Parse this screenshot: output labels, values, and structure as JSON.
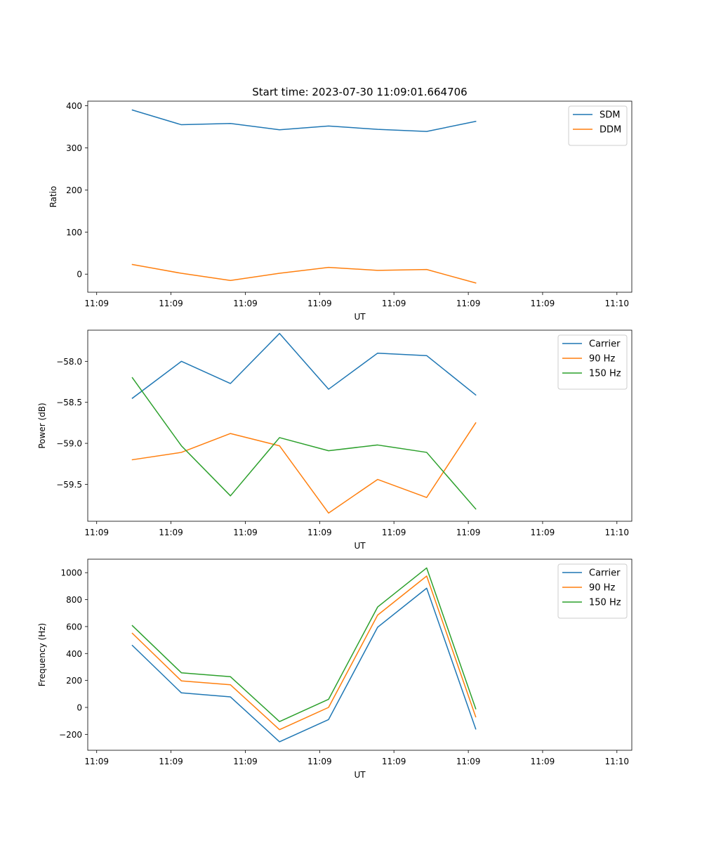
{
  "figure_title": "Start time: 2023-07-30 11:09:01.664706",
  "colors": {
    "c0": "#1f77b4",
    "c1": "#ff7f0e",
    "c2": "#2ca02c",
    "axis": "#000000",
    "legend_border": "#cccccc"
  },
  "chart_data": [
    {
      "type": "line",
      "title": "Start time: 2023-07-30 11:09:01.664706",
      "xlabel": "UT",
      "ylabel": "Ratio",
      "x_ticks": [
        "11:09",
        "11:09",
        "11:09",
        "11:09",
        "11:09",
        "11:09",
        "11:09",
        "11:10"
      ],
      "x_tick_positions": [
        0,
        8.33,
        16.67,
        25,
        33.33,
        41.67,
        50,
        58.33
      ],
      "xlim": [
        -1,
        60
      ],
      "ylim": [
        -43,
        411
      ],
      "y_ticks": [
        0,
        100,
        200,
        300,
        400
      ],
      "legend_location": "upper right",
      "x": [
        4,
        9.5,
        15,
        20.5,
        26,
        31.5,
        37,
        42.5
      ],
      "series": [
        {
          "name": "SDM",
          "color": "#1f77b4",
          "values": [
            390,
            355,
            358,
            343,
            352,
            344,
            339,
            363
          ]
        },
        {
          "name": "DDM",
          "color": "#ff7f0e",
          "values": [
            23,
            2,
            -15,
            2,
            16,
            9,
            11,
            -21
          ]
        }
      ]
    },
    {
      "type": "line",
      "title": "",
      "xlabel": "UT",
      "ylabel": "Power (dB)",
      "x_ticks": [
        "11:09",
        "11:09",
        "11:09",
        "11:09",
        "11:09",
        "11:09",
        "11:09",
        "11:10"
      ],
      "x_tick_positions": [
        0,
        8.33,
        16.67,
        25,
        33.33,
        41.67,
        50,
        58.33
      ],
      "xlim": [
        -1,
        60
      ],
      "ylim": [
        -59.95,
        -57.62
      ],
      "y_ticks": [
        -58.0,
        -58.5,
        -59.0,
        -59.5
      ],
      "y_tick_labels": [
        "−58.0",
        "−58.5",
        "−59.0",
        "−59.5"
      ],
      "legend_location": "upper right",
      "x": [
        4,
        9.5,
        15,
        20.5,
        26,
        31.5,
        37,
        42.5
      ],
      "series": [
        {
          "name": "Carrier",
          "color": "#1f77b4",
          "values": [
            -58.45,
            -58.0,
            -58.27,
            -57.66,
            -58.34,
            -57.9,
            -57.93,
            -58.41
          ]
        },
        {
          "name": "90 Hz",
          "color": "#ff7f0e",
          "values": [
            -59.2,
            -59.11,
            -58.88,
            -59.03,
            -59.85,
            -59.44,
            -59.66,
            -58.75
          ]
        },
        {
          "name": "150 Hz",
          "color": "#2ca02c",
          "values": [
            -58.2,
            -59.03,
            -59.64,
            -58.93,
            -59.09,
            -59.02,
            -59.11,
            -59.8
          ]
        }
      ]
    },
    {
      "type": "line",
      "title": "",
      "xlabel": "UT",
      "ylabel": "Frequency (Hz)",
      "x_ticks": [
        "11:09",
        "11:09",
        "11:09",
        "11:09",
        "11:09",
        "11:09",
        "11:09",
        "11:10"
      ],
      "x_tick_positions": [
        0,
        8.33,
        16.67,
        25,
        33.33,
        41.67,
        50,
        58.33
      ],
      "xlim": [
        -1,
        60
      ],
      "ylim": [
        -318,
        1100
      ],
      "y_ticks": [
        -200,
        0,
        200,
        400,
        600,
        800,
        1000
      ],
      "y_tick_labels": [
        "−200",
        "0",
        "200",
        "400",
        "600",
        "800",
        "1000"
      ],
      "legend_location": "upper right",
      "x": [
        4,
        9.5,
        15,
        20.5,
        26,
        31.5,
        37,
        42.5
      ],
      "series": [
        {
          "name": "Carrier",
          "color": "#1f77b4",
          "values": [
            460,
            108,
            78,
            -255,
            -90,
            595,
            885,
            -160
          ]
        },
        {
          "name": "90 Hz",
          "color": "#ff7f0e",
          "values": [
            550,
            197,
            168,
            -165,
            0,
            685,
            975,
            -70
          ]
        },
        {
          "name": "150 Hz",
          "color": "#2ca02c",
          "values": [
            607,
            257,
            228,
            -105,
            60,
            745,
            1035,
            -10
          ]
        }
      ]
    }
  ]
}
